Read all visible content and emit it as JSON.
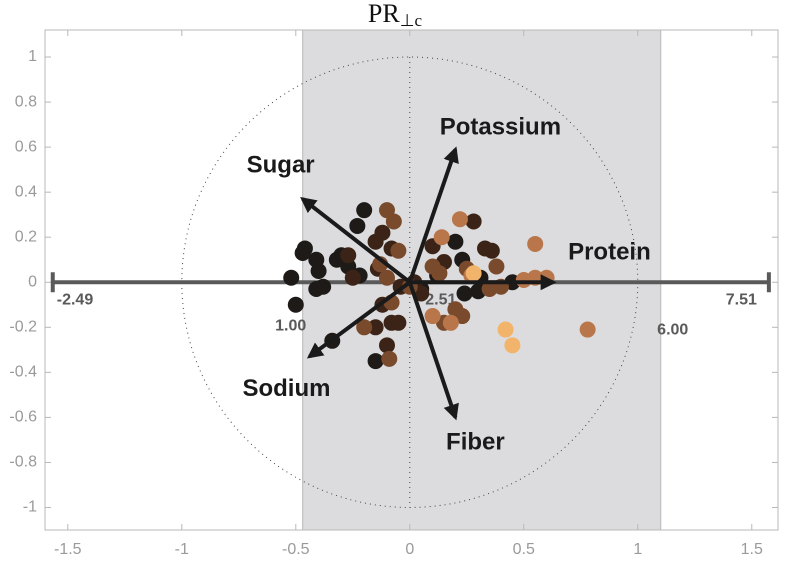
{
  "chart_data": {
    "type": "biplot",
    "title": "PR",
    "title_subscript": "⊥c",
    "xlim": [
      -1.6,
      1.615
    ],
    "ylim": [
      -1.1,
      1.12
    ],
    "xticks": [
      -1.5,
      -1,
      -0.5,
      0,
      0.5,
      1,
      1.5
    ],
    "yticks": [
      -1,
      -0.8,
      -0.6,
      -0.4,
      -0.2,
      0,
      0.2,
      0.4,
      0.6,
      0.8,
      1
    ],
    "circle_radius": 1,
    "calibrated_axis": {
      "range": [
        -2.49,
        7.51
      ],
      "span": [
        -1.566,
        1.575
      ],
      "ticks": [
        -2.49,
        {
          "value": 1,
          "label": "1.00"
        },
        2.51,
        {
          "value": 6,
          "label": "6.00"
        },
        7.51
      ],
      "band": [
        1,
        6
      ],
      "band_color": "#dcdcde",
      "color": "#5a5a5a"
    },
    "arrows": [
      {
        "label": "Potassium",
        "x": 0.2,
        "y": 0.59
      },
      {
        "label": "Sugar",
        "x": -0.47,
        "y": 0.37
      },
      {
        "label": "Protein",
        "x": 0.63,
        "y": 0.0
      },
      {
        "label": "Sodium",
        "x": -0.44,
        "y": -0.33
      },
      {
        "label": "Fiber",
        "x": 0.2,
        "y": -0.6
      }
    ],
    "arrow_color": "#1a1a1a",
    "groups": [
      {
        "color": "#1e1a18",
        "x": [
          -0.52,
          -0.5,
          -0.47,
          -0.46,
          -0.41,
          -0.4,
          -0.38,
          -0.41,
          -0.32,
          -0.3,
          -0.27,
          -0.22,
          -0.23,
          -0.2,
          -0.34,
          -0.15,
          0.24,
          0.3,
          0.05,
          0.12,
          0.23,
          0.2,
          0.31,
          0.45
        ],
        "y": [
          0.02,
          -0.1,
          0.13,
          0.15,
          0.1,
          0.05,
          -0.02,
          -0.03,
          0.1,
          0.12,
          0.07,
          0.03,
          0.25,
          0.32,
          -0.26,
          -0.35,
          -0.05,
          -0.04,
          -0.03,
          0.03,
          0.1,
          0.18,
          0.02,
          0.0
        ]
      },
      {
        "color": "#3b2417",
        "x": [
          -0.27,
          -0.25,
          -0.15,
          -0.12,
          -0.08,
          -0.14,
          -0.12,
          -0.15,
          -0.1,
          -0.08,
          -0.05,
          -0.04,
          0.02,
          0.05,
          0.1,
          0.15,
          0.33,
          0.36,
          0.28
        ],
        "y": [
          0.12,
          0.02,
          0.18,
          0.22,
          0.15,
          0.06,
          -0.1,
          -0.2,
          -0.28,
          -0.18,
          -0.18,
          -0.02,
          0.0,
          -0.05,
          0.16,
          0.09,
          0.15,
          0.14,
          0.27
        ]
      },
      {
        "color": "#7a4a2c",
        "x": [
          -0.1,
          -0.07,
          -0.05,
          -0.13,
          -0.1,
          -0.08,
          -0.09,
          -0.2,
          0.0,
          0.1,
          0.13,
          0.15,
          0.2,
          0.23,
          0.25,
          0.35,
          0.4,
          0.38
        ],
        "y": [
          0.32,
          0.27,
          0.14,
          0.08,
          0.02,
          -0.09,
          -0.34,
          -0.2,
          -0.02,
          0.07,
          0.04,
          -0.18,
          -0.12,
          -0.15,
          0.06,
          -0.03,
          -0.02,
          0.07
        ]
      },
      {
        "color": "#b9764a",
        "x": [
          0.14,
          0.22,
          0.27,
          0.1,
          0.18,
          0.5,
          0.55,
          0.6,
          0.78,
          0.55
        ],
        "y": [
          0.2,
          0.28,
          0.03,
          -0.15,
          -0.18,
          0.01,
          0.02,
          0.02,
          -0.21,
          0.17
        ]
      },
      {
        "color": "#f2b46a",
        "x": [
          0.42,
          0.45,
          0.28
        ],
        "y": [
          -0.21,
          -0.28,
          0.04
        ]
      }
    ]
  }
}
